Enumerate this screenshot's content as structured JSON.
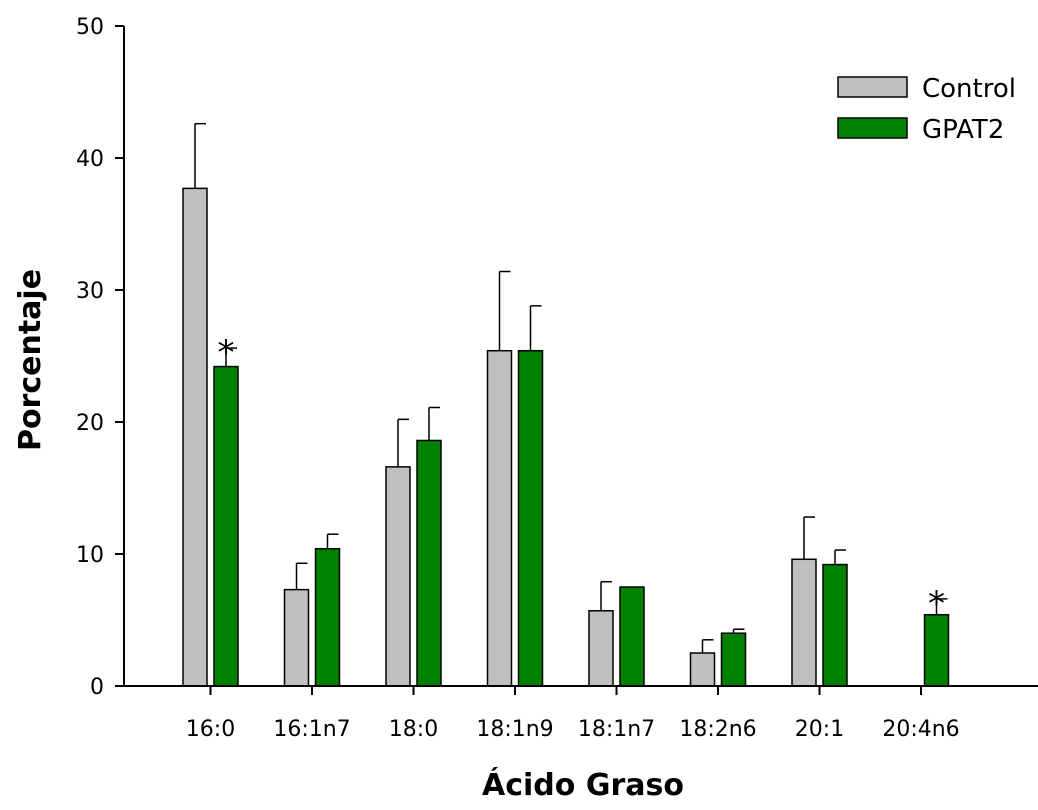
{
  "chart_data": {
    "type": "bar",
    "title": "",
    "xlabel": "Ácido Graso",
    "ylabel": "Porcentaje",
    "ylim": [
      0,
      50
    ],
    "yticks": [
      0,
      10,
      20,
      30,
      40,
      50
    ],
    "grid": false,
    "legend_position": "top-right",
    "categories": [
      "16:0",
      "16:1n7",
      "18:0",
      "18:1n9",
      "18:1n7",
      "18:2n6",
      "20:1",
      "20:4n6"
    ],
    "series": [
      {
        "name": "Control",
        "color": "#c0c0c0",
        "values": [
          37.7,
          7.3,
          16.6,
          25.4,
          5.7,
          2.5,
          9.6,
          0
        ],
        "errors": [
          4.9,
          2.0,
          3.6,
          6.0,
          2.2,
          1.0,
          3.2,
          0
        ],
        "significant": [
          false,
          false,
          false,
          false,
          false,
          false,
          false,
          false
        ]
      },
      {
        "name": "GPAT2",
        "color": "#008000",
        "values": [
          24.2,
          10.4,
          18.6,
          25.4,
          7.5,
          4.0,
          9.2,
          5.4
        ],
        "errors": [
          1.4,
          1.1,
          2.5,
          3.4,
          0.0,
          0.3,
          1.1,
          1.2
        ],
        "significant": [
          true,
          false,
          false,
          false,
          false,
          false,
          false,
          true
        ]
      }
    ],
    "annotation_marker": "*"
  }
}
